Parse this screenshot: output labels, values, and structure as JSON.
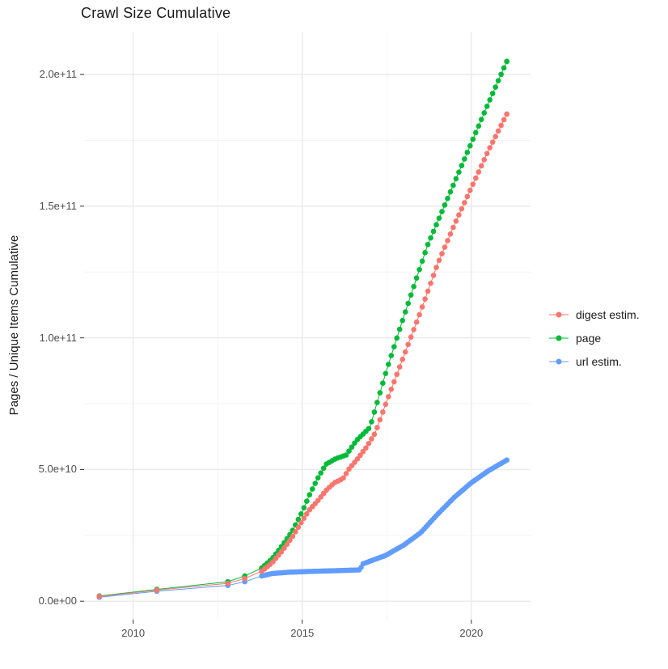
{
  "chart_data": {
    "type": "line",
    "title": "Crawl Size Cumulative",
    "xlabel": "",
    "ylabel": "Pages / Unique Items Cumulative",
    "values_unit": "billions (1e9) of pages / unique items",
    "x_axis": {
      "range": [
        2008.55,
        2021.75
      ],
      "ticks": [
        {
          "value": 2010,
          "label": "2010"
        },
        {
          "value": 2015,
          "label": "2015"
        },
        {
          "value": 2020,
          "label": "2020"
        }
      ],
      "minor_ticks": [
        2012.5,
        2017.5
      ]
    },
    "y_axis": {
      "range_e9": [
        -7,
        216
      ],
      "ticks": [
        {
          "value_e9": 0,
          "label": "0.0e+00"
        },
        {
          "value_e9": 50,
          "label": "5.0e+10"
        },
        {
          "value_e9": 100,
          "label": "1.0e+11"
        },
        {
          "value_e9": 150,
          "label": "1.5e+11"
        },
        {
          "value_e9": 200,
          "label": "2.0e+11"
        }
      ],
      "minor_ticks_e9": [
        25,
        75,
        125,
        175
      ]
    },
    "grid": true,
    "legend_position": "right",
    "series": [
      {
        "name": "url estim.",
        "color": "#619CFF",
        "sparse_until": 2013.5,
        "dense_from": 2013.8,
        "dot_interval_years": 0.06,
        "points_e9": [
          [
            2009.0,
            1.5
          ],
          [
            2010.7,
            3.8
          ],
          [
            2012.8,
            6.0
          ],
          [
            2013.3,
            7.4
          ],
          [
            2013.8,
            9.6
          ],
          [
            2014.1,
            10.5
          ],
          [
            2014.6,
            11.0
          ],
          [
            2015.2,
            11.3
          ],
          [
            2016.0,
            11.6
          ],
          [
            2016.7,
            11.9
          ],
          [
            2016.8,
            14.2
          ],
          [
            2017.0,
            15.2
          ],
          [
            2017.45,
            17.3
          ],
          [
            2018.0,
            21.3
          ],
          [
            2018.5,
            26.0
          ],
          [
            2019.0,
            33.0
          ],
          [
            2019.5,
            39.5
          ],
          [
            2020.0,
            45.0
          ],
          [
            2020.5,
            49.5
          ],
          [
            2021.05,
            53.6
          ]
        ]
      },
      {
        "name": "page",
        "color": "#00BA38",
        "sparse_until": 2013.5,
        "dense_from": 2013.8,
        "dot_interval_years": 0.0833,
        "points_e9": [
          [
            2009.0,
            2.0
          ],
          [
            2010.7,
            4.5
          ],
          [
            2012.8,
            7.4
          ],
          [
            2013.3,
            9.6
          ],
          [
            2013.8,
            12.6
          ],
          [
            2014.1,
            16.0
          ],
          [
            2014.4,
            21.0
          ],
          [
            2014.7,
            26.5
          ],
          [
            2015.0,
            34.0
          ],
          [
            2015.2,
            40.0
          ],
          [
            2015.45,
            46.5
          ],
          [
            2015.7,
            52.0
          ],
          [
            2016.0,
            54.2
          ],
          [
            2016.3,
            55.5
          ],
          [
            2016.6,
            61.0
          ],
          [
            2017.0,
            66.0
          ],
          [
            2017.5,
            88.0
          ],
          [
            2018.0,
            108.0
          ],
          [
            2018.7,
            135.0
          ],
          [
            2019.0,
            144.0
          ],
          [
            2019.5,
            159.0
          ],
          [
            2020.0,
            174.0
          ],
          [
            2020.5,
            189.0
          ],
          [
            2021.05,
            205.0
          ]
        ]
      },
      {
        "name": "digest estim.",
        "color": "#F8766D",
        "sparse_until": 2013.5,
        "dense_from": 2013.8,
        "dot_interval_years": 0.0833,
        "points_e9": [
          [
            2009.0,
            1.8
          ],
          [
            2010.7,
            4.2
          ],
          [
            2012.8,
            6.8
          ],
          [
            2013.3,
            8.6
          ],
          [
            2013.8,
            11.4
          ],
          [
            2014.1,
            14.5
          ],
          [
            2014.4,
            19.0
          ],
          [
            2014.7,
            24.3
          ],
          [
            2015.0,
            30.5
          ],
          [
            2015.2,
            34.5
          ],
          [
            2015.45,
            38.0
          ],
          [
            2015.7,
            42.0
          ],
          [
            2015.95,
            45.0
          ],
          [
            2016.2,
            46.5
          ],
          [
            2016.4,
            50.5
          ],
          [
            2016.6,
            53.5
          ],
          [
            2016.9,
            58.5
          ],
          [
            2017.16,
            64.0
          ],
          [
            2017.5,
            76.0
          ],
          [
            2018.0,
            93.0
          ],
          [
            2018.5,
            110.0
          ],
          [
            2019.0,
            128.0
          ],
          [
            2019.5,
            143.0
          ],
          [
            2020.0,
            157.0
          ],
          [
            2020.5,
            171.0
          ],
          [
            2021.05,
            185.0
          ]
        ]
      }
    ],
    "legend_order": [
      "digest estim.",
      "page",
      "url estim."
    ]
  },
  "style": {
    "grid_major_color": "#EBEBEB",
    "grid_minor_color": "#F3F3F3",
    "tick_mark_color": "#333333",
    "text_color": "#4d4d4d"
  }
}
